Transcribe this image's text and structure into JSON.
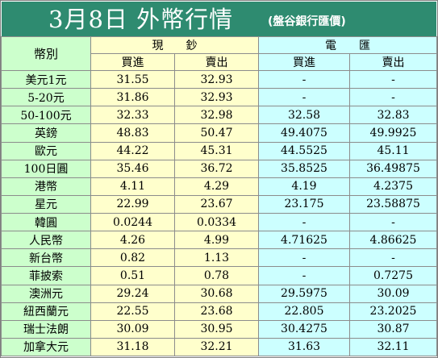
{
  "title": "3月8日 外幣行情",
  "subtitle": "(盤谷銀行匯價)",
  "header": {
    "currency": "幣別",
    "cash": "現　　鈔",
    "wire": "電　　匯",
    "buy": "買進",
    "sell": "賣出"
  },
  "rows": [
    {
      "name": "美元1元",
      "cash_buy": "31.55",
      "cash_sell": "32.93",
      "wire_buy": "-",
      "wire_sell": "-"
    },
    {
      "name": "5-20元",
      "cash_buy": "31.86",
      "cash_sell": "32.93",
      "wire_buy": "-",
      "wire_sell": "-"
    },
    {
      "name": "50-100元",
      "cash_buy": "32.33",
      "cash_sell": "32.98",
      "wire_buy": "32.58",
      "wire_sell": "32.83"
    },
    {
      "name": "英鎊",
      "cash_buy": "48.83",
      "cash_sell": "50.47",
      "wire_buy": "49.4075",
      "wire_sell": "49.9925"
    },
    {
      "name": "歐元",
      "cash_buy": "44.22",
      "cash_sell": "45.31",
      "wire_buy": "44.5525",
      "wire_sell": "45.11"
    },
    {
      "name": "100日圓",
      "cash_buy": "35.46",
      "cash_sell": "36.72",
      "wire_buy": "35.8525",
      "wire_sell": "36.49875"
    },
    {
      "name": "港幣",
      "cash_buy": "4.11",
      "cash_sell": "4.29",
      "wire_buy": "4.19",
      "wire_sell": "4.2375"
    },
    {
      "name": "星元",
      "cash_buy": "22.99",
      "cash_sell": "23.67",
      "wire_buy": "23.175",
      "wire_sell": "23.58875"
    },
    {
      "name": "韓圓",
      "cash_buy": "0.0244",
      "cash_sell": "0.0334",
      "wire_buy": "-",
      "wire_sell": "-"
    },
    {
      "name": "人民幣",
      "cash_buy": "4.26",
      "cash_sell": "4.99",
      "wire_buy": "4.71625",
      "wire_sell": "4.86625"
    },
    {
      "name": "新台幣",
      "cash_buy": "0.82",
      "cash_sell": "1.13",
      "wire_buy": "-",
      "wire_sell": "-"
    },
    {
      "name": "菲披索",
      "cash_buy": "0.51",
      "cash_sell": "0.78",
      "wire_buy": "-",
      "wire_sell": "0.7275"
    },
    {
      "name": "澳洲元",
      "cash_buy": "29.24",
      "cash_sell": "30.68",
      "wire_buy": "29.5975",
      "wire_sell": "30.09"
    },
    {
      "name": "紐西蘭元",
      "cash_buy": "22.55",
      "cash_sell": "23.68",
      "wire_buy": "22.805",
      "wire_sell": "23.2025"
    },
    {
      "name": "瑞士法朗",
      "cash_buy": "30.09",
      "cash_sell": "30.95",
      "wire_buy": "30.4275",
      "wire_sell": "30.87"
    },
    {
      "name": "加拿大元",
      "cash_buy": "31.18",
      "cash_sell": "32.21",
      "wire_buy": "31.63",
      "wire_sell": "32.11"
    }
  ]
}
